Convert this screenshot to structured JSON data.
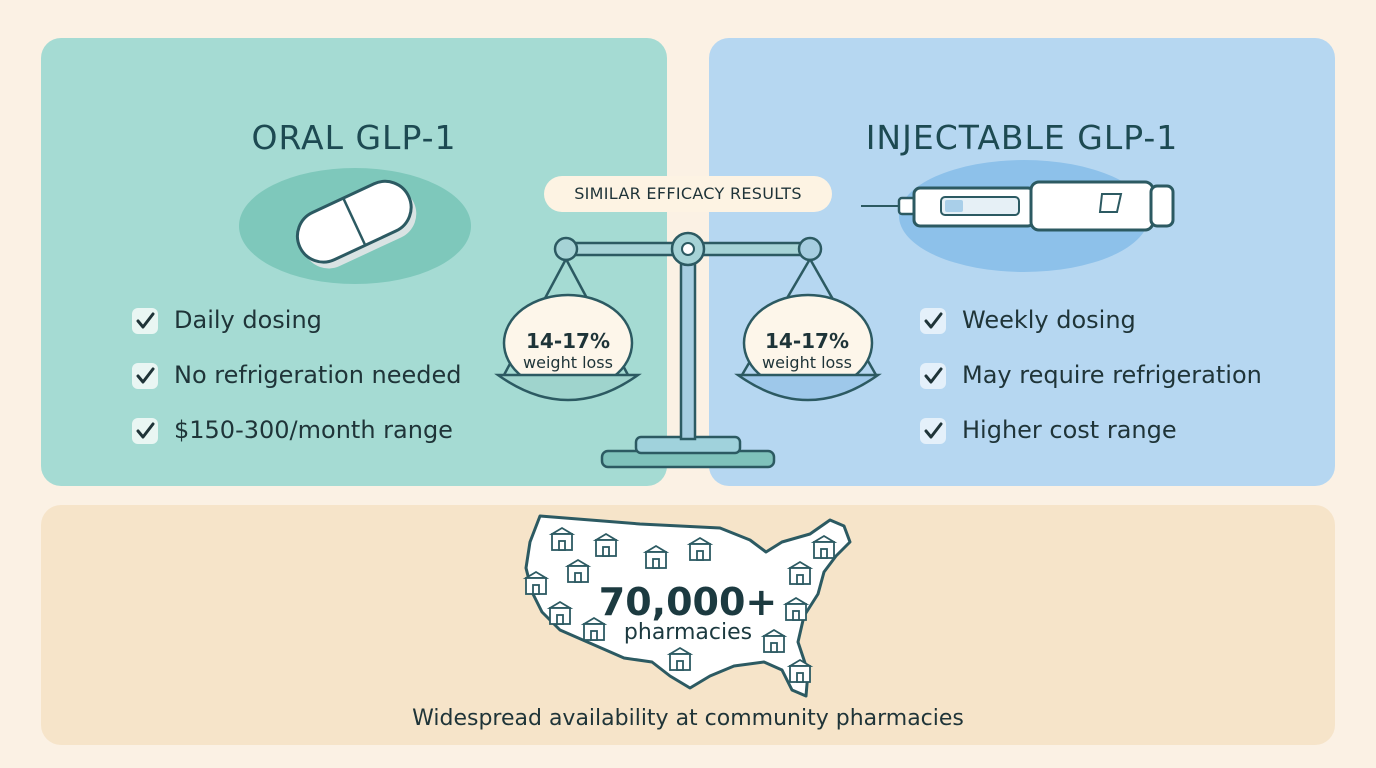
{
  "oral": {
    "title": "ORAL GLP-1",
    "features": [
      "Daily dosing",
      "No refrigeration needed",
      "$150-300/month range"
    ]
  },
  "injectable": {
    "title": "INJECTABLE GLP-1",
    "features": [
      "Weekly dosing",
      "May require refrigeration",
      "Higher cost range"
    ]
  },
  "comparison": {
    "badge": "SIMILAR EFFICACY RESULTS",
    "left_value": "14-17%",
    "left_label": "weight loss",
    "right_value": "14-17%",
    "right_label": "weight loss"
  },
  "availability": {
    "count": "70,000+",
    "count_label": "pharmacies",
    "caption": "Widespread availability at community pharmacies"
  },
  "colors": {
    "oral_panel": "#a5dbd3",
    "injectable_panel": "#b6d7f1",
    "availability_panel": "#f6e4c9",
    "background": "#fbf1e4"
  }
}
